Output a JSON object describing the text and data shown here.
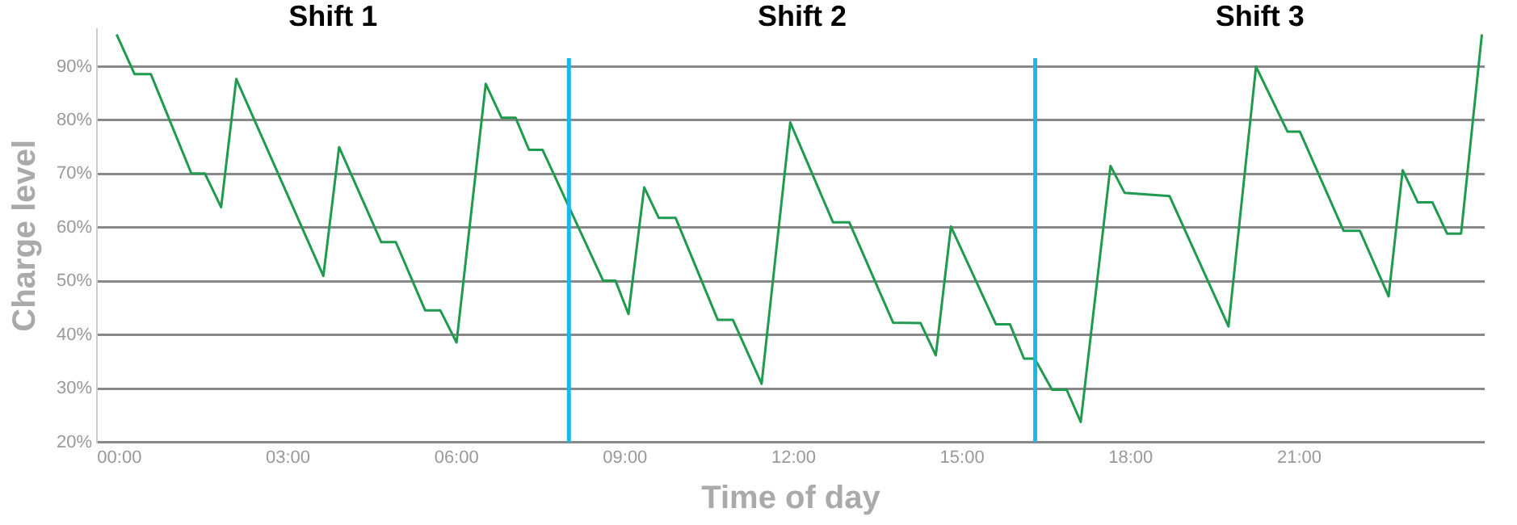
{
  "chart_data": {
    "type": "line",
    "xlabel": "Time of day",
    "ylabel": "Charge level",
    "x": [
      -0.05,
      0.27,
      0.56,
      1.28,
      1.52,
      1.81,
      2.08,
      3.63,
      3.91,
      4.66,
      4.92,
      5.44,
      5.71,
      6.0,
      6.52,
      6.8,
      7.05,
      7.29,
      7.53,
      8.61,
      8.83,
      9.06,
      9.34,
      9.6,
      9.9,
      10.65,
      10.92,
      11.43,
      11.94,
      12.7,
      12.99,
      13.77,
      14.26,
      14.53,
      14.8,
      15.6,
      15.85,
      16.1,
      16.29,
      16.6,
      16.86,
      17.11,
      17.64,
      17.89,
      18.69,
      19.74,
      20.23,
      20.79,
      21.01,
      21.79,
      22.08,
      22.59,
      22.84,
      23.11,
      23.37,
      23.63,
      23.88,
      24.25
    ],
    "series": [
      {
        "color": "#1f9a4e",
        "values": [
          96,
          88.6,
          88.6,
          70.1,
          70.1,
          63.8,
          87.7,
          51,
          75,
          57.3,
          57.3,
          44.6,
          44.6,
          38.6,
          86.8,
          80.5,
          80.5,
          74.5,
          74.5,
          50.1,
          50.1,
          43.9,
          67.5,
          61.8,
          61.8,
          42.8,
          42.8,
          30.9,
          79.6,
          61,
          61,
          42.3,
          42.2,
          36.2,
          60.2,
          42,
          42,
          35.6,
          35.6,
          29.8,
          29.8,
          23.8,
          71.5,
          66.5,
          65.9,
          41.6,
          90,
          77.9,
          77.9,
          59.4,
          59.4,
          47.2,
          70.7,
          64.7,
          64.7,
          58.9,
          58.9,
          96
        ]
      }
    ],
    "xlim": [
      -0.4,
      24.3
    ],
    "ylim": [
      20,
      97
    ],
    "xticks": [
      {
        "value": 0,
        "label": "00:00"
      },
      {
        "value": 3,
        "label": "03:00"
      },
      {
        "value": 6,
        "label": "06:00"
      },
      {
        "value": 9,
        "label": "09:00"
      },
      {
        "value": 12,
        "label": "12:00"
      },
      {
        "value": 15,
        "label": "15:00"
      },
      {
        "value": 18,
        "label": "18:00"
      },
      {
        "value": 21,
        "label": "21:00"
      }
    ],
    "yticks": [
      {
        "value": 20,
        "label": "20%"
      },
      {
        "value": 30,
        "label": "30%"
      },
      {
        "value": 40,
        "label": "40%"
      },
      {
        "value": 50,
        "label": "50%"
      },
      {
        "value": 60,
        "label": "60%"
      },
      {
        "value": 70,
        "label": "70%"
      },
      {
        "value": 80,
        "label": "80%"
      },
      {
        "value": 90,
        "label": "90%"
      }
    ],
    "grid": "y",
    "legend": false,
    "marker": "none",
    "line_style": "solid",
    "ref_lines": [
      {
        "axis": "x",
        "value": 8,
        "color": "#1ab7ea"
      },
      {
        "axis": "x",
        "value": 16.3,
        "color": "#1ab7ea"
      }
    ],
    "annotations": [
      "Shift 1",
      "Shift 2",
      "Shift 3"
    ]
  }
}
